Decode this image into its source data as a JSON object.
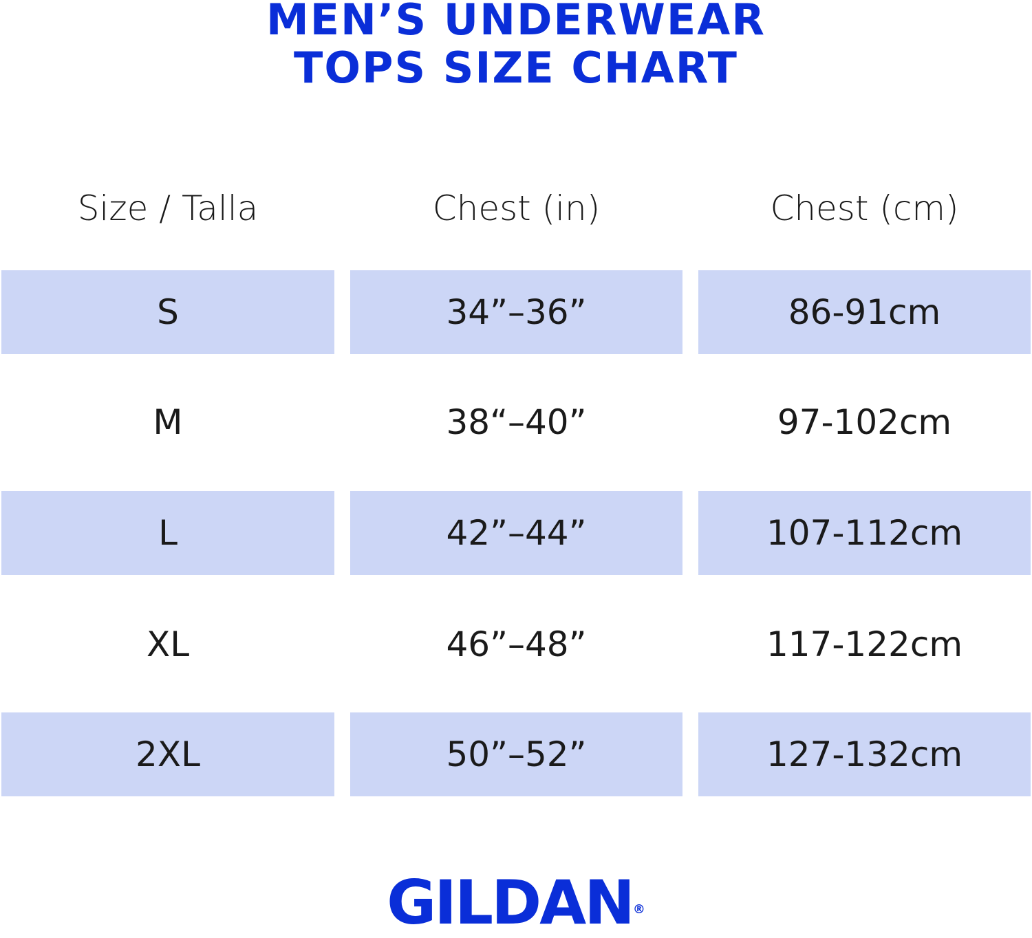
{
  "title": {
    "line1": "MEN’S UNDERWEAR",
    "line2": "TOPS SIZE CHART"
  },
  "colors": {
    "brand_blue": "#0a2ed8",
    "band": "#ccd6f6",
    "text": "#1a1a1a"
  },
  "table": {
    "headers": [
      "Size / Talla",
      "Chest (in)",
      "Chest (cm)"
    ],
    "rows": [
      [
        "S",
        "34”–36”",
        "86-91cm"
      ],
      [
        "M",
        "38“–40”",
        "97-102cm"
      ],
      [
        "L",
        "42”–44”",
        "107-112cm"
      ],
      [
        "XL",
        "46”–48”",
        "117-122cm"
      ],
      [
        "2XL",
        "50”–52”",
        "127-132cm"
      ]
    ]
  },
  "logo": {
    "text": "GILDAN",
    "mark": "®"
  }
}
